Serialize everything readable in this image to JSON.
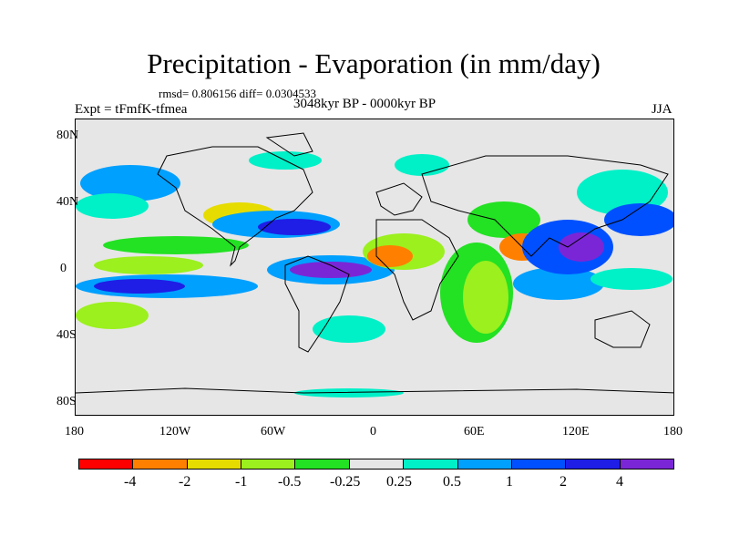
{
  "title": "Precipitation - Evaporation (in mm/day)",
  "stats": "rmsd= 0.806156 diff= 0.0304533",
  "subtitle": "3048kyr BP - 0000kyr BP",
  "experiment": "Expt = tFmfK-tfmea",
  "season": "JJA",
  "map": {
    "background_color": "#e6e6e6",
    "lat_ticks": [
      "80N",
      "40N",
      "0",
      "40S",
      "80S"
    ],
    "lon_ticks": [
      "180",
      "120W",
      "60W",
      "0",
      "60E",
      "120E",
      "180"
    ]
  },
  "colorbar": {
    "colors": [
      "#ff0000",
      "#ff8000",
      "#e6dc00",
      "#9bf01e",
      "#23e123",
      "#e6e6e6",
      "#00f0c8",
      "#00a0ff",
      "#0050ff",
      "#1e1ee6",
      "#7b26d6"
    ],
    "labels": [
      "-4",
      "-2",
      "-1",
      "-0.5",
      "-0.25",
      "0.25",
      "0.5",
      "1",
      "2",
      "4"
    ]
  }
}
